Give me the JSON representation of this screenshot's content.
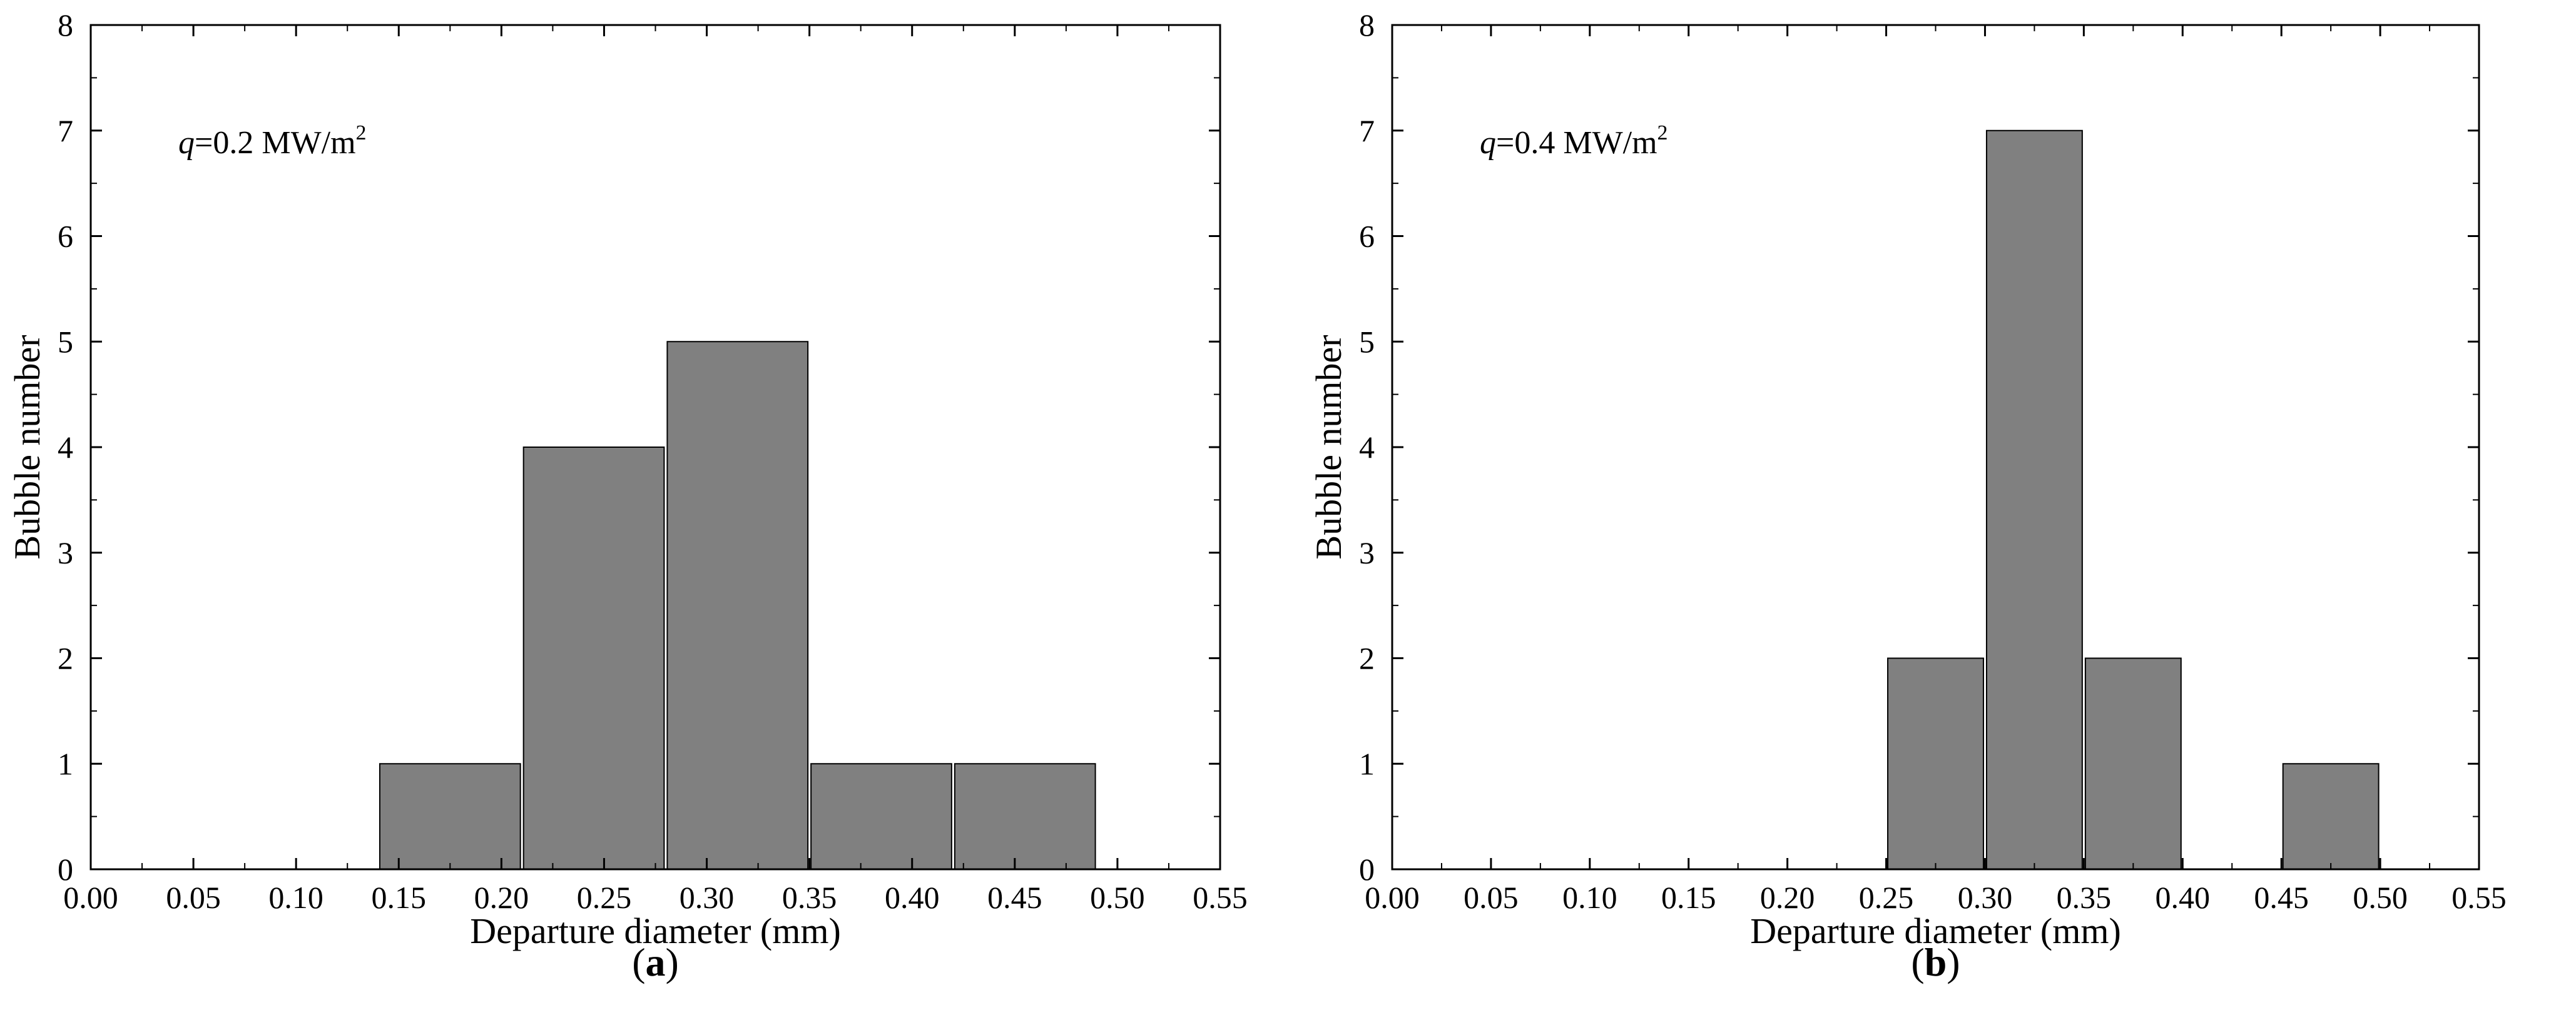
{
  "chart_data": [
    {
      "type": "bar",
      "panel_label": "a",
      "annotation": {
        "var": "q",
        "text": "=0.2 MW/m",
        "sup": "2"
      },
      "xlabel": "Departure diameter (mm)",
      "ylabel": "Bubble number",
      "xlim": [
        0.0,
        0.55
      ],
      "ylim": [
        0,
        8
      ],
      "xticks": [
        "0.00",
        "0.05",
        "0.10",
        "0.15",
        "0.20",
        "0.25",
        "0.30",
        "0.35",
        "0.40",
        "0.45",
        "0.50",
        "0.55"
      ],
      "yticks": [
        "0",
        "1",
        "2",
        "3",
        "4",
        "5",
        "6",
        "7",
        "8"
      ],
      "bars": [
        {
          "x0": 0.14,
          "x1": 0.21,
          "value": 1
        },
        {
          "x0": 0.21,
          "x1": 0.28,
          "value": 4
        },
        {
          "x0": 0.28,
          "x1": 0.35,
          "value": 5
        },
        {
          "x0": 0.35,
          "x1": 0.42,
          "value": 1
        },
        {
          "x0": 0.42,
          "x1": 0.49,
          "value": 1
        }
      ],
      "bar_color": "#808080",
      "grid": false
    },
    {
      "type": "bar",
      "panel_label": "b",
      "annotation": {
        "var": "q",
        "text": "=0.4 MW/m",
        "sup": "2"
      },
      "xlabel": "Departure diameter (mm)",
      "ylabel": "Bubble number",
      "xlim": [
        0.0,
        0.55
      ],
      "ylim": [
        0,
        8
      ],
      "xticks": [
        "0.00",
        "0.05",
        "0.10",
        "0.15",
        "0.20",
        "0.25",
        "0.30",
        "0.35",
        "0.40",
        "0.45",
        "0.50",
        "0.55"
      ],
      "yticks": [
        "0",
        "1",
        "2",
        "3",
        "4",
        "5",
        "6",
        "7",
        "8"
      ],
      "bars": [
        {
          "x0": 0.25,
          "x1": 0.3,
          "value": 2
        },
        {
          "x0": 0.3,
          "x1": 0.35,
          "value": 7
        },
        {
          "x0": 0.35,
          "x1": 0.4,
          "value": 2
        },
        {
          "x0": 0.45,
          "x1": 0.5,
          "value": 1
        }
      ],
      "bar_color": "#808080",
      "grid": false
    }
  ]
}
